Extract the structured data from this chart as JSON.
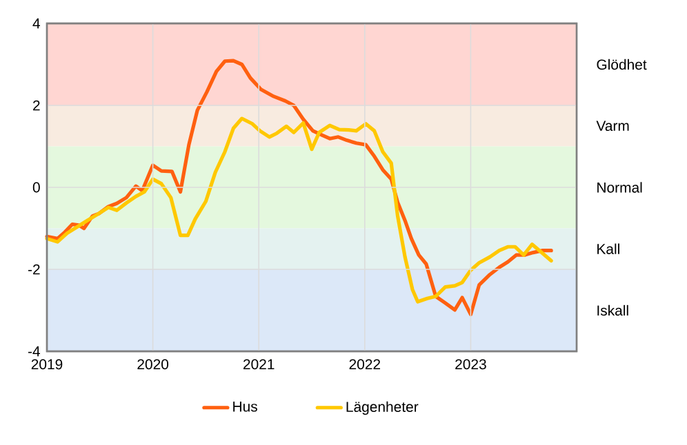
{
  "chart_data": {
    "type": "line",
    "xlim": [
      2019,
      2024
    ],
    "xticks": [
      2019,
      2020,
      2021,
      2022,
      2023
    ],
    "ylim": [
      -4,
      4
    ],
    "yticks": [
      -4,
      -2,
      0,
      2,
      4
    ],
    "grid": true,
    "legend": "bottom",
    "line_style": "solid",
    "marker": "none",
    "bands": [
      {
        "axis": "y",
        "from": 2,
        "to": 4,
        "color": "#ffd6d2",
        "label": "Glödhet"
      },
      {
        "axis": "y",
        "from": 1,
        "to": 2,
        "color": "#f8ebe0",
        "label": "Varm"
      },
      {
        "axis": "y",
        "from": -1,
        "to": 1,
        "color": "#e4f8de",
        "label": "Normal"
      },
      {
        "axis": "y",
        "from": -2,
        "to": -1,
        "color": "#e4f2f0",
        "label": "Kall"
      },
      {
        "axis": "y",
        "from": -4,
        "to": -2,
        "color": "#dce8f8",
        "label": "Iskall"
      }
    ],
    "series": [
      {
        "name": "Hus",
        "color": "#ff6010",
        "x": [
          2019.0,
          2019.1,
          2019.17,
          2019.24,
          2019.3,
          2019.35,
          2019.43,
          2019.49,
          2019.58,
          2019.66,
          2019.75,
          2019.84,
          2019.9,
          2020.0,
          2020.08,
          2020.18,
          2020.26,
          2020.34,
          2020.42,
          2020.51,
          2020.6,
          2020.68,
          2020.76,
          2020.84,
          2020.92,
          2021.02,
          2021.14,
          2021.25,
          2021.33,
          2021.42,
          2021.51,
          2021.6,
          2021.67,
          2021.75,
          2021.83,
          2021.92,
          2022.01,
          2022.09,
          2022.17,
          2022.25,
          2022.31,
          2022.38,
          2022.44,
          2022.51,
          2022.58,
          2022.67,
          2022.76,
          2022.85,
          2022.92,
          2023.0,
          2023.08,
          2023.18,
          2023.27,
          2023.35,
          2023.43,
          2023.51,
          2023.59,
          2023.68,
          2023.76
        ],
        "values": [
          -1.2,
          -1.25,
          -1.09,
          -0.9,
          -0.92,
          -1.0,
          -0.7,
          -0.64,
          -0.47,
          -0.39,
          -0.25,
          0.03,
          -0.08,
          0.54,
          0.4,
          0.39,
          -0.11,
          1.04,
          1.88,
          2.33,
          2.83,
          3.08,
          3.09,
          3.0,
          2.67,
          2.39,
          2.22,
          2.11,
          2.0,
          1.66,
          1.38,
          1.27,
          1.19,
          1.23,
          1.15,
          1.08,
          1.04,
          0.76,
          0.43,
          0.2,
          -0.36,
          -0.81,
          -1.25,
          -1.65,
          -1.87,
          -2.66,
          -2.82,
          -2.99,
          -2.69,
          -3.1,
          -2.38,
          -2.13,
          -1.95,
          -1.82,
          -1.65,
          -1.65,
          -1.59,
          -1.54,
          -1.54
        ]
      },
      {
        "name": "Lägenheter",
        "color": "#ffc800",
        "x": [
          2019.0,
          2019.1,
          2019.19,
          2019.3,
          2019.38,
          2019.47,
          2019.58,
          2019.66,
          2019.75,
          2019.84,
          2019.92,
          2020.0,
          2020.08,
          2020.17,
          2020.26,
          2020.33,
          2020.4,
          2020.5,
          2020.59,
          2020.68,
          2020.76,
          2020.84,
          2020.94,
          2021.01,
          2021.1,
          2021.17,
          2021.26,
          2021.33,
          2021.42,
          2021.5,
          2021.57,
          2021.67,
          2021.76,
          2021.85,
          2021.92,
          2022.01,
          2022.09,
          2022.17,
          2022.25,
          2022.31,
          2022.38,
          2022.45,
          2022.5,
          2022.59,
          2022.67,
          2022.76,
          2022.85,
          2022.92,
          2023.0,
          2023.08,
          2023.18,
          2023.27,
          2023.35,
          2023.42,
          2023.5,
          2023.58,
          2023.67,
          2023.76
        ],
        "values": [
          -1.25,
          -1.33,
          -1.12,
          -0.94,
          -0.81,
          -0.67,
          -0.49,
          -0.56,
          -0.38,
          -0.22,
          -0.11,
          0.2,
          0.09,
          -0.25,
          -1.17,
          -1.17,
          -0.77,
          -0.34,
          0.37,
          0.87,
          1.44,
          1.68,
          1.55,
          1.38,
          1.23,
          1.32,
          1.49,
          1.34,
          1.57,
          0.93,
          1.34,
          1.51,
          1.41,
          1.4,
          1.38,
          1.55,
          1.38,
          0.87,
          0.59,
          -0.69,
          -1.7,
          -2.49,
          -2.79,
          -2.71,
          -2.66,
          -2.43,
          -2.4,
          -2.32,
          -2.02,
          -1.84,
          -1.7,
          -1.54,
          -1.45,
          -1.45,
          -1.65,
          -1.39,
          -1.59,
          -1.79
        ]
      }
    ]
  }
}
